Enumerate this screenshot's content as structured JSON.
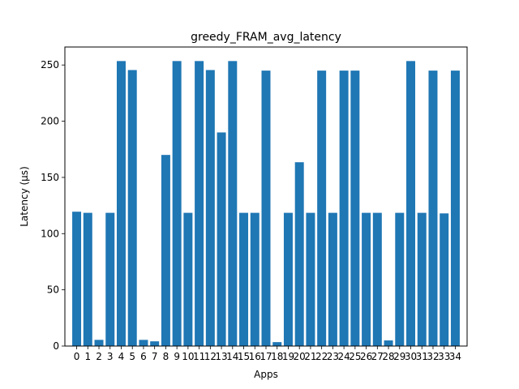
{
  "chart_data": {
    "type": "bar",
    "title": "greedy_FRAM_avg_latency",
    "xlabel": "Apps",
    "ylabel": "Latency (µs)",
    "categories": [
      "0",
      "1",
      "2",
      "3",
      "4",
      "5",
      "6",
      "7",
      "8",
      "9",
      "10",
      "11",
      "12",
      "13",
      "14",
      "15",
      "16",
      "17",
      "18",
      "19",
      "20",
      "21",
      "22",
      "23",
      "24",
      "25",
      "26",
      "27",
      "28",
      "29",
      "30",
      "31",
      "32",
      "33",
      "34"
    ],
    "values": [
      119.5,
      118.5,
      5.5,
      118.5,
      253.5,
      245.5,
      5.5,
      4.2,
      170,
      253.5,
      118.5,
      253.5,
      245.5,
      190,
      253.5,
      118.5,
      118.5,
      245,
      3.5,
      118.5,
      163.5,
      118.5,
      245,
      118.5,
      245,
      245,
      118.5,
      118.5,
      5,
      118.5,
      253.5,
      118.5,
      245,
      118,
      245
    ],
    "ylim": [
      0,
      266
    ],
    "yticks": [
      0,
      50,
      100,
      150,
      200,
      250
    ],
    "bar_color": "#1f77b4",
    "grid": false,
    "legend": "none"
  }
}
